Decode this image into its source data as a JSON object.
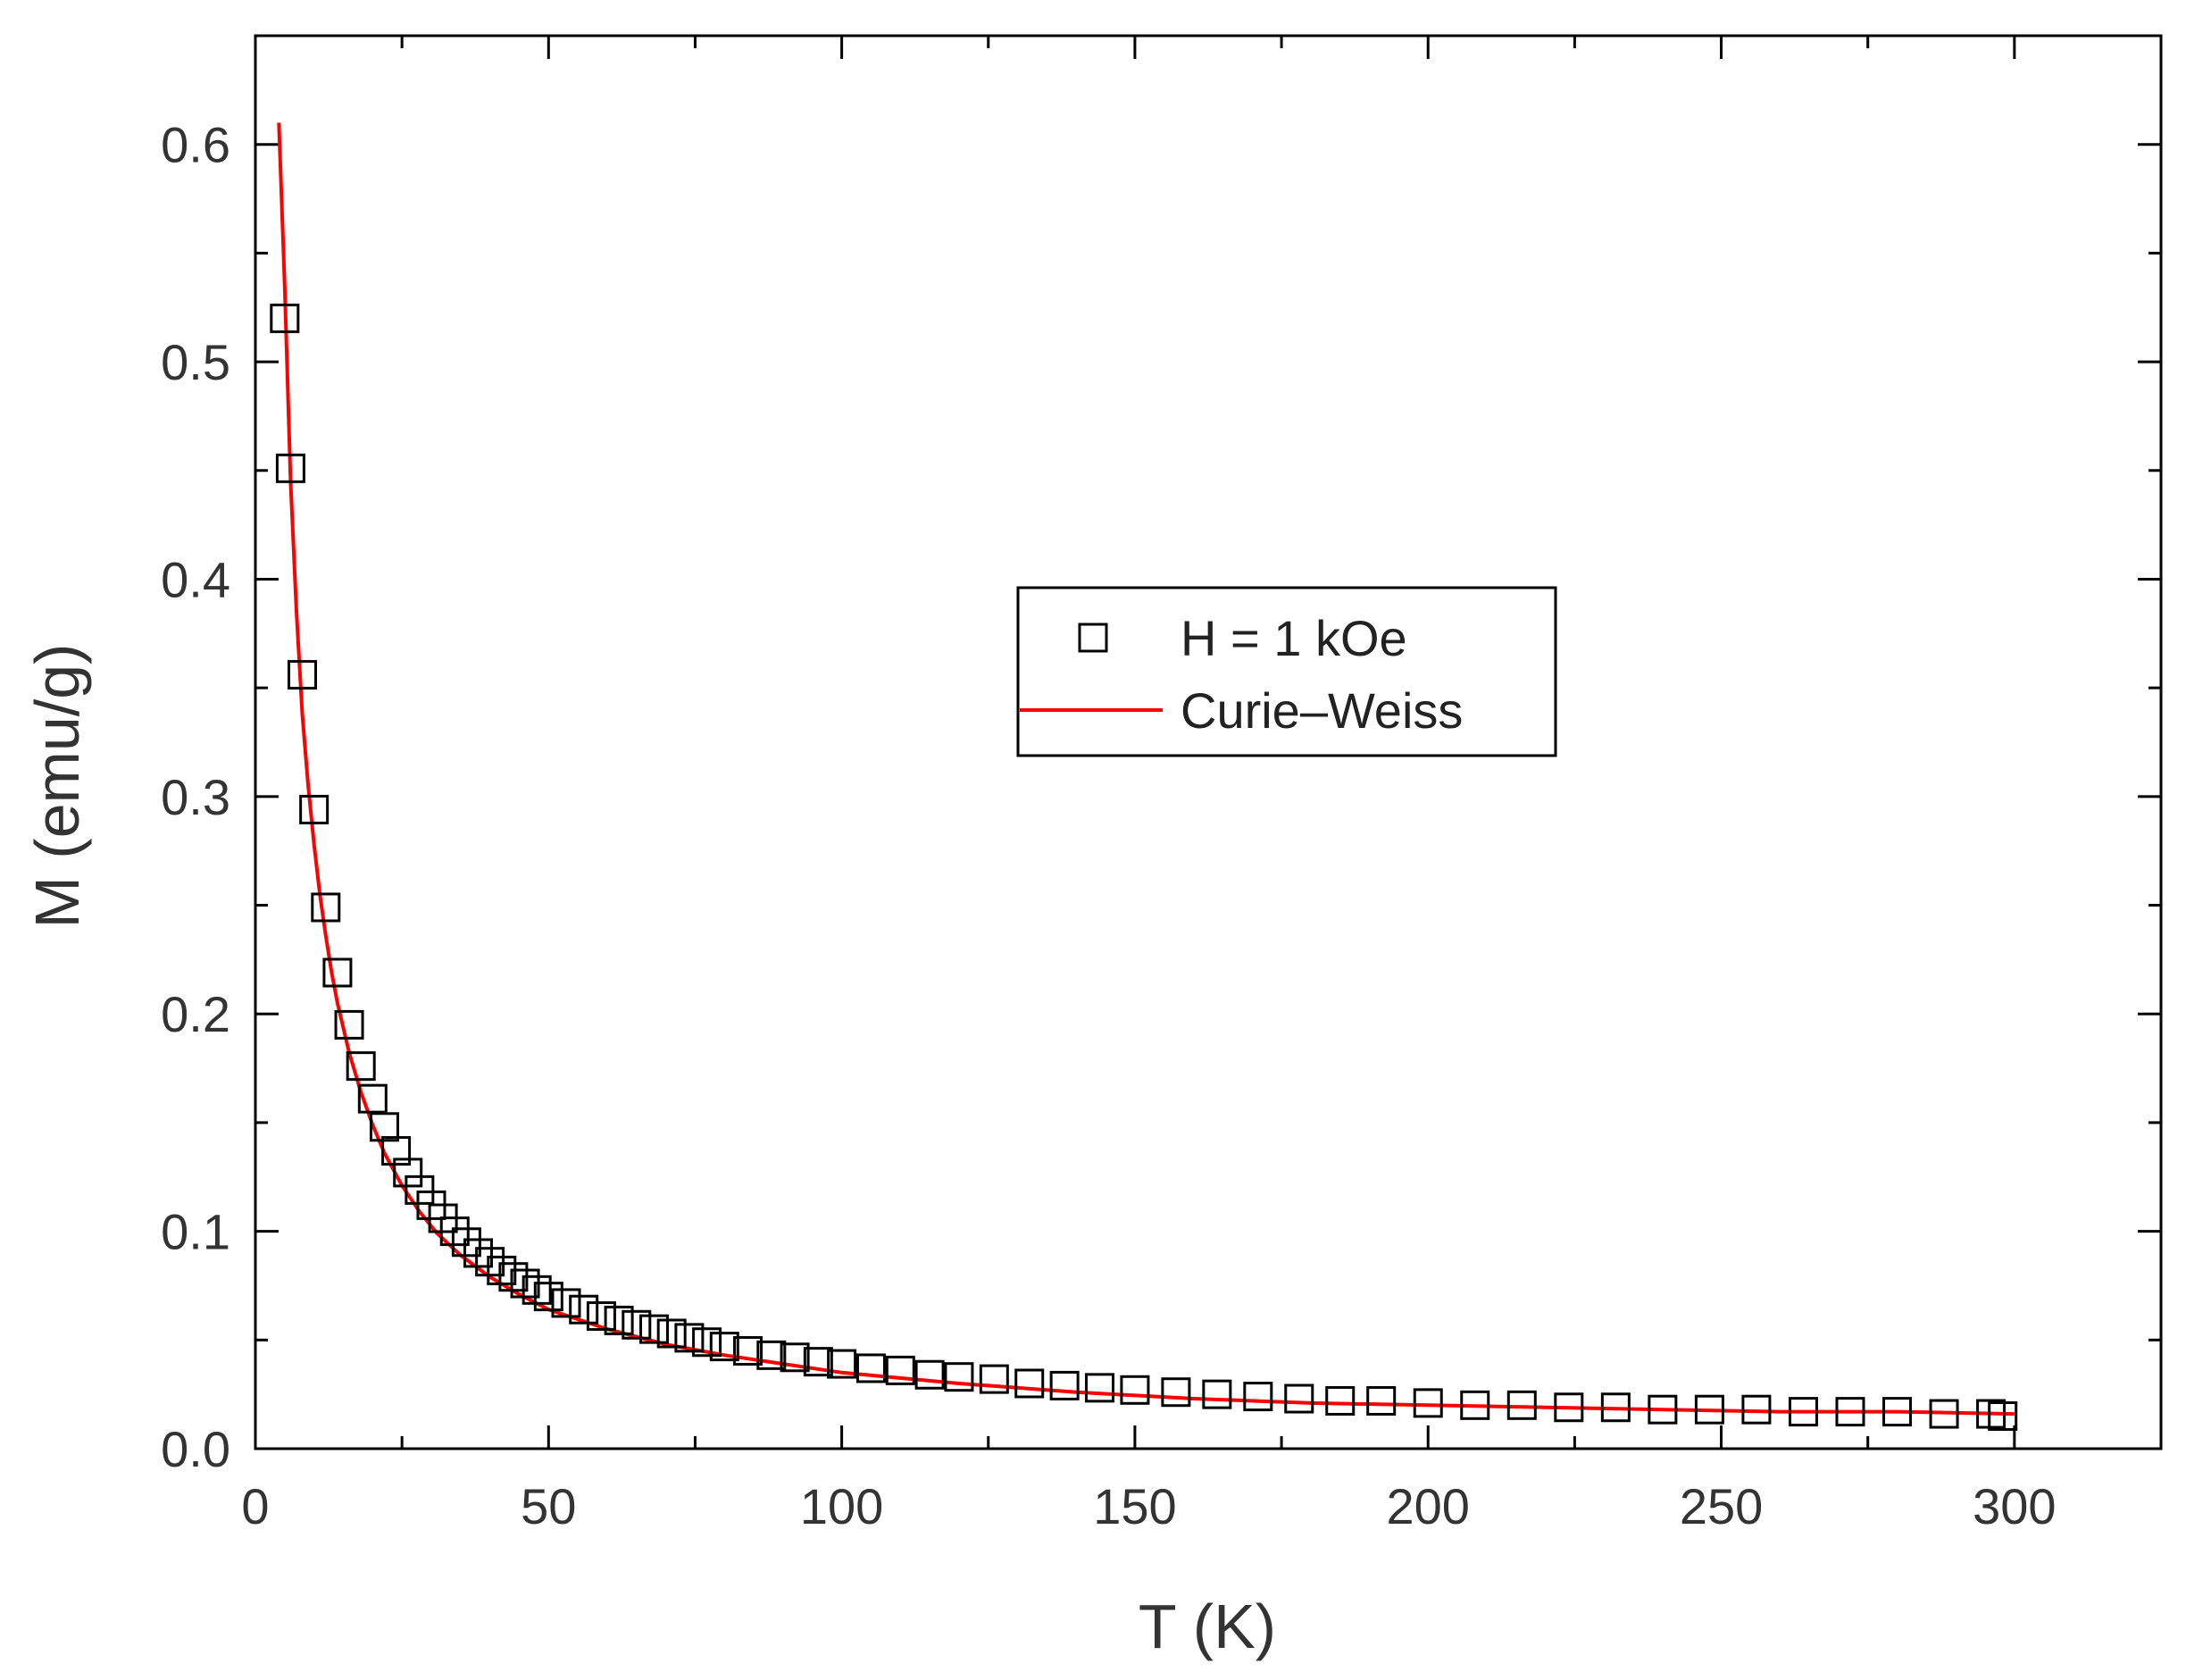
{
  "chart_data": {
    "type": "scatter",
    "title": "",
    "xlabel": "T (K)",
    "ylabel": "M (emu/g)",
    "xlim": [
      0,
      325
    ],
    "ylim": [
      0,
      0.65
    ],
    "x_ticks": [
      0,
      50,
      100,
      150,
      200,
      250,
      300
    ],
    "x_tick_labels": [
      "0",
      "50",
      "100",
      "150",
      "200",
      "250",
      "300"
    ],
    "y_ticks": [
      0.0,
      0.1,
      0.2,
      0.3,
      0.4,
      0.5,
      0.6
    ],
    "y_tick_labels": [
      "0.0",
      "0.1",
      "0.2",
      "0.3",
      "0.4",
      "0.5",
      "0.6"
    ],
    "grid": false,
    "legend_position": "center-right",
    "series": [
      {
        "name": "H = 1 kOe",
        "kind": "scatter",
        "marker": "open-square",
        "color": "#000000",
        "x": [
          5,
          6,
          8,
          10,
          12,
          14,
          16,
          18,
          20,
          22,
          24,
          26,
          28,
          30,
          32,
          34,
          36,
          38,
          40,
          42,
          44,
          46,
          48,
          50,
          53,
          56,
          59,
          62,
          65,
          68,
          71,
          74,
          77,
          80,
          84,
          88,
          92,
          96,
          100,
          105,
          110,
          115,
          120,
          126,
          132,
          138,
          144,
          150,
          157,
          164,
          171,
          178,
          185,
          192,
          200,
          208,
          216,
          224,
          232,
          240,
          248,
          256,
          264,
          272,
          280,
          288,
          296,
          298
        ],
        "y": [
          0.52,
          0.451,
          0.356,
          0.294,
          0.249,
          0.219,
          0.195,
          0.176,
          0.161,
          0.148,
          0.137,
          0.127,
          0.119,
          0.112,
          0.106,
          0.1,
          0.095,
          0.09,
          0.086,
          0.082,
          0.079,
          0.076,
          0.073,
          0.07,
          0.067,
          0.064,
          0.061,
          0.059,
          0.057,
          0.055,
          0.053,
          0.051,
          0.049,
          0.047,
          0.045,
          0.043,
          0.042,
          0.04,
          0.039,
          0.037,
          0.036,
          0.034,
          0.033,
          0.032,
          0.03,
          0.029,
          0.028,
          0.027,
          0.026,
          0.025,
          0.024,
          0.023,
          0.022,
          0.022,
          0.021,
          0.02,
          0.02,
          0.019,
          0.019,
          0.018,
          0.018,
          0.018,
          0.017,
          0.017,
          0.017,
          0.016,
          0.016,
          0.015
        ]
      },
      {
        "name": "Curie–Weiss",
        "kind": "line",
        "color": "#ff0000",
        "x": [
          4,
          5,
          6,
          7,
          8,
          9,
          10,
          11,
          12,
          13,
          14,
          16,
          18,
          20,
          22,
          25,
          28,
          31,
          35,
          40,
          45,
          50,
          60,
          70,
          80,
          90,
          100,
          120,
          140,
          160,
          180,
          200,
          220,
          240,
          260,
          280,
          300
        ],
        "y": [
          0.61,
          0.535,
          0.445,
          0.385,
          0.338,
          0.305,
          0.278,
          0.255,
          0.236,
          0.219,
          0.205,
          0.182,
          0.164,
          0.149,
          0.136,
          0.121,
          0.109,
          0.099,
          0.089,
          0.079,
          0.071,
          0.064,
          0.055,
          0.048,
          0.043,
          0.039,
          0.035,
          0.03,
          0.026,
          0.023,
          0.021,
          0.02,
          0.019,
          0.018,
          0.017,
          0.017,
          0.016
        ]
      }
    ]
  }
}
